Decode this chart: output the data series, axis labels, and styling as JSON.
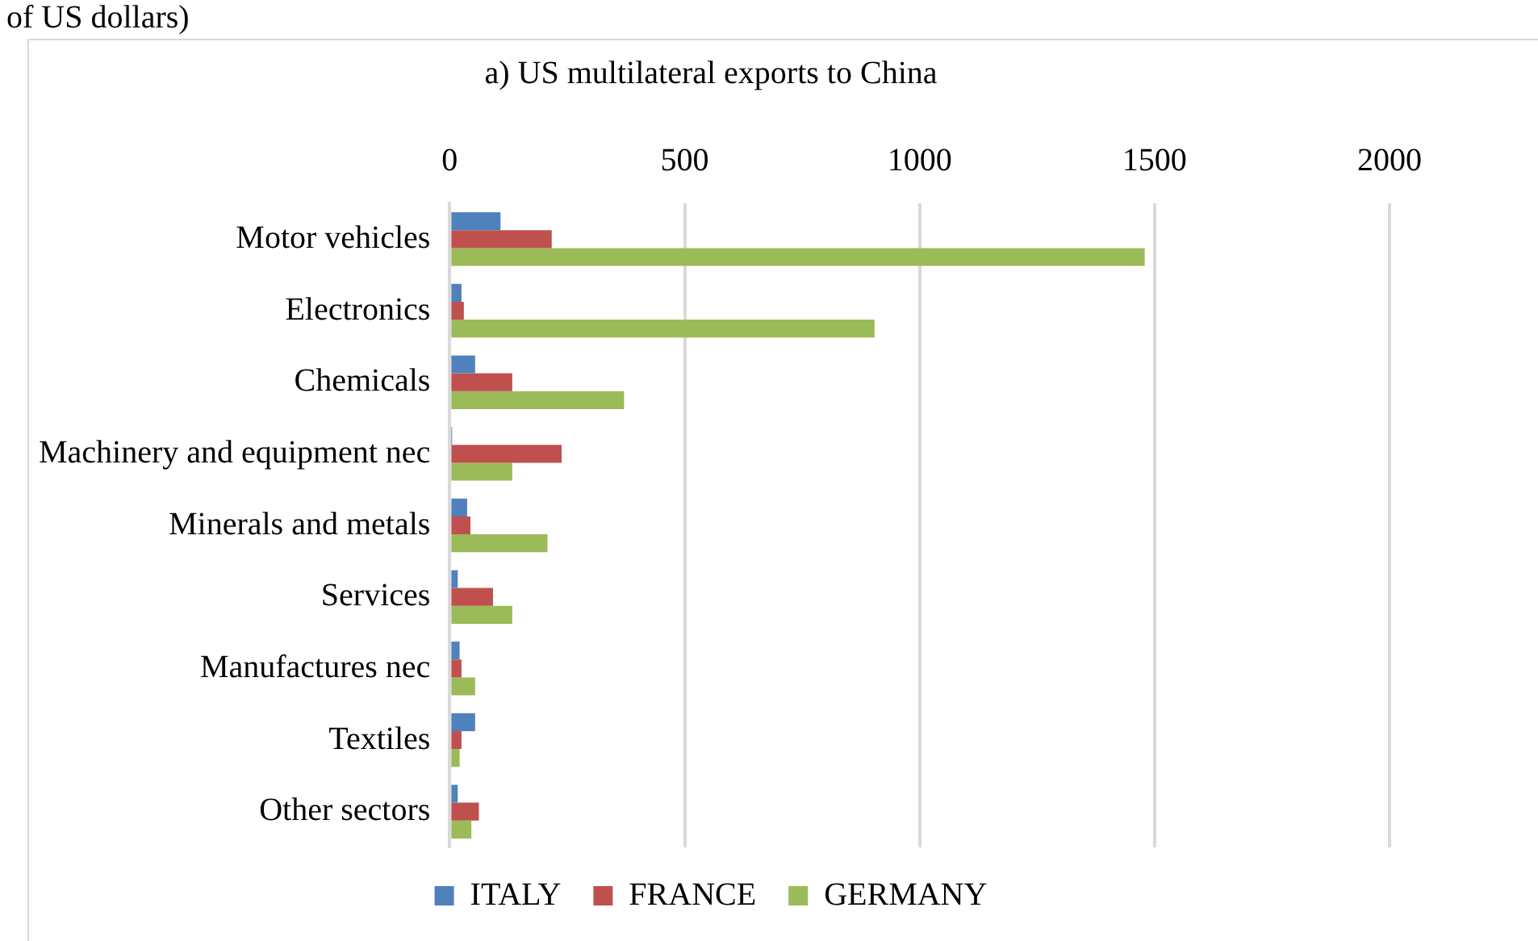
{
  "chart_data": {
    "type": "bar",
    "orientation": "horizontal",
    "title": "a) US multilateral exports to China",
    "annotations": [
      "of US dollars)"
    ],
    "categories": [
      "Motor vehicles",
      "Electronics",
      "Chemicals",
      "Machinery and equipment nec",
      "Minerals and metals",
      "Services",
      "Manufactures nec",
      "Textiles",
      "Other sectors"
    ],
    "series": [
      {
        "name": "ITALY",
        "color": "#4f81bd",
        "values": [
          108,
          25,
          54,
          5,
          37,
          17,
          21,
          54,
          17
        ]
      },
      {
        "name": "FRANCE",
        "color": "#c0504d",
        "values": [
          217,
          30,
          133,
          238,
          44,
          92,
          25,
          25,
          62
        ]
      },
      {
        "name": "GERMANY",
        "color": "#9bbb59",
        "values": [
          1479,
          904,
          371,
          133,
          208,
          133,
          54,
          21,
          46
        ]
      }
    ],
    "xlim": [
      0,
      2000
    ],
    "xticks": [
      0,
      500,
      1000,
      1500,
      2000
    ],
    "grid": "x",
    "legend": "bottom"
  }
}
